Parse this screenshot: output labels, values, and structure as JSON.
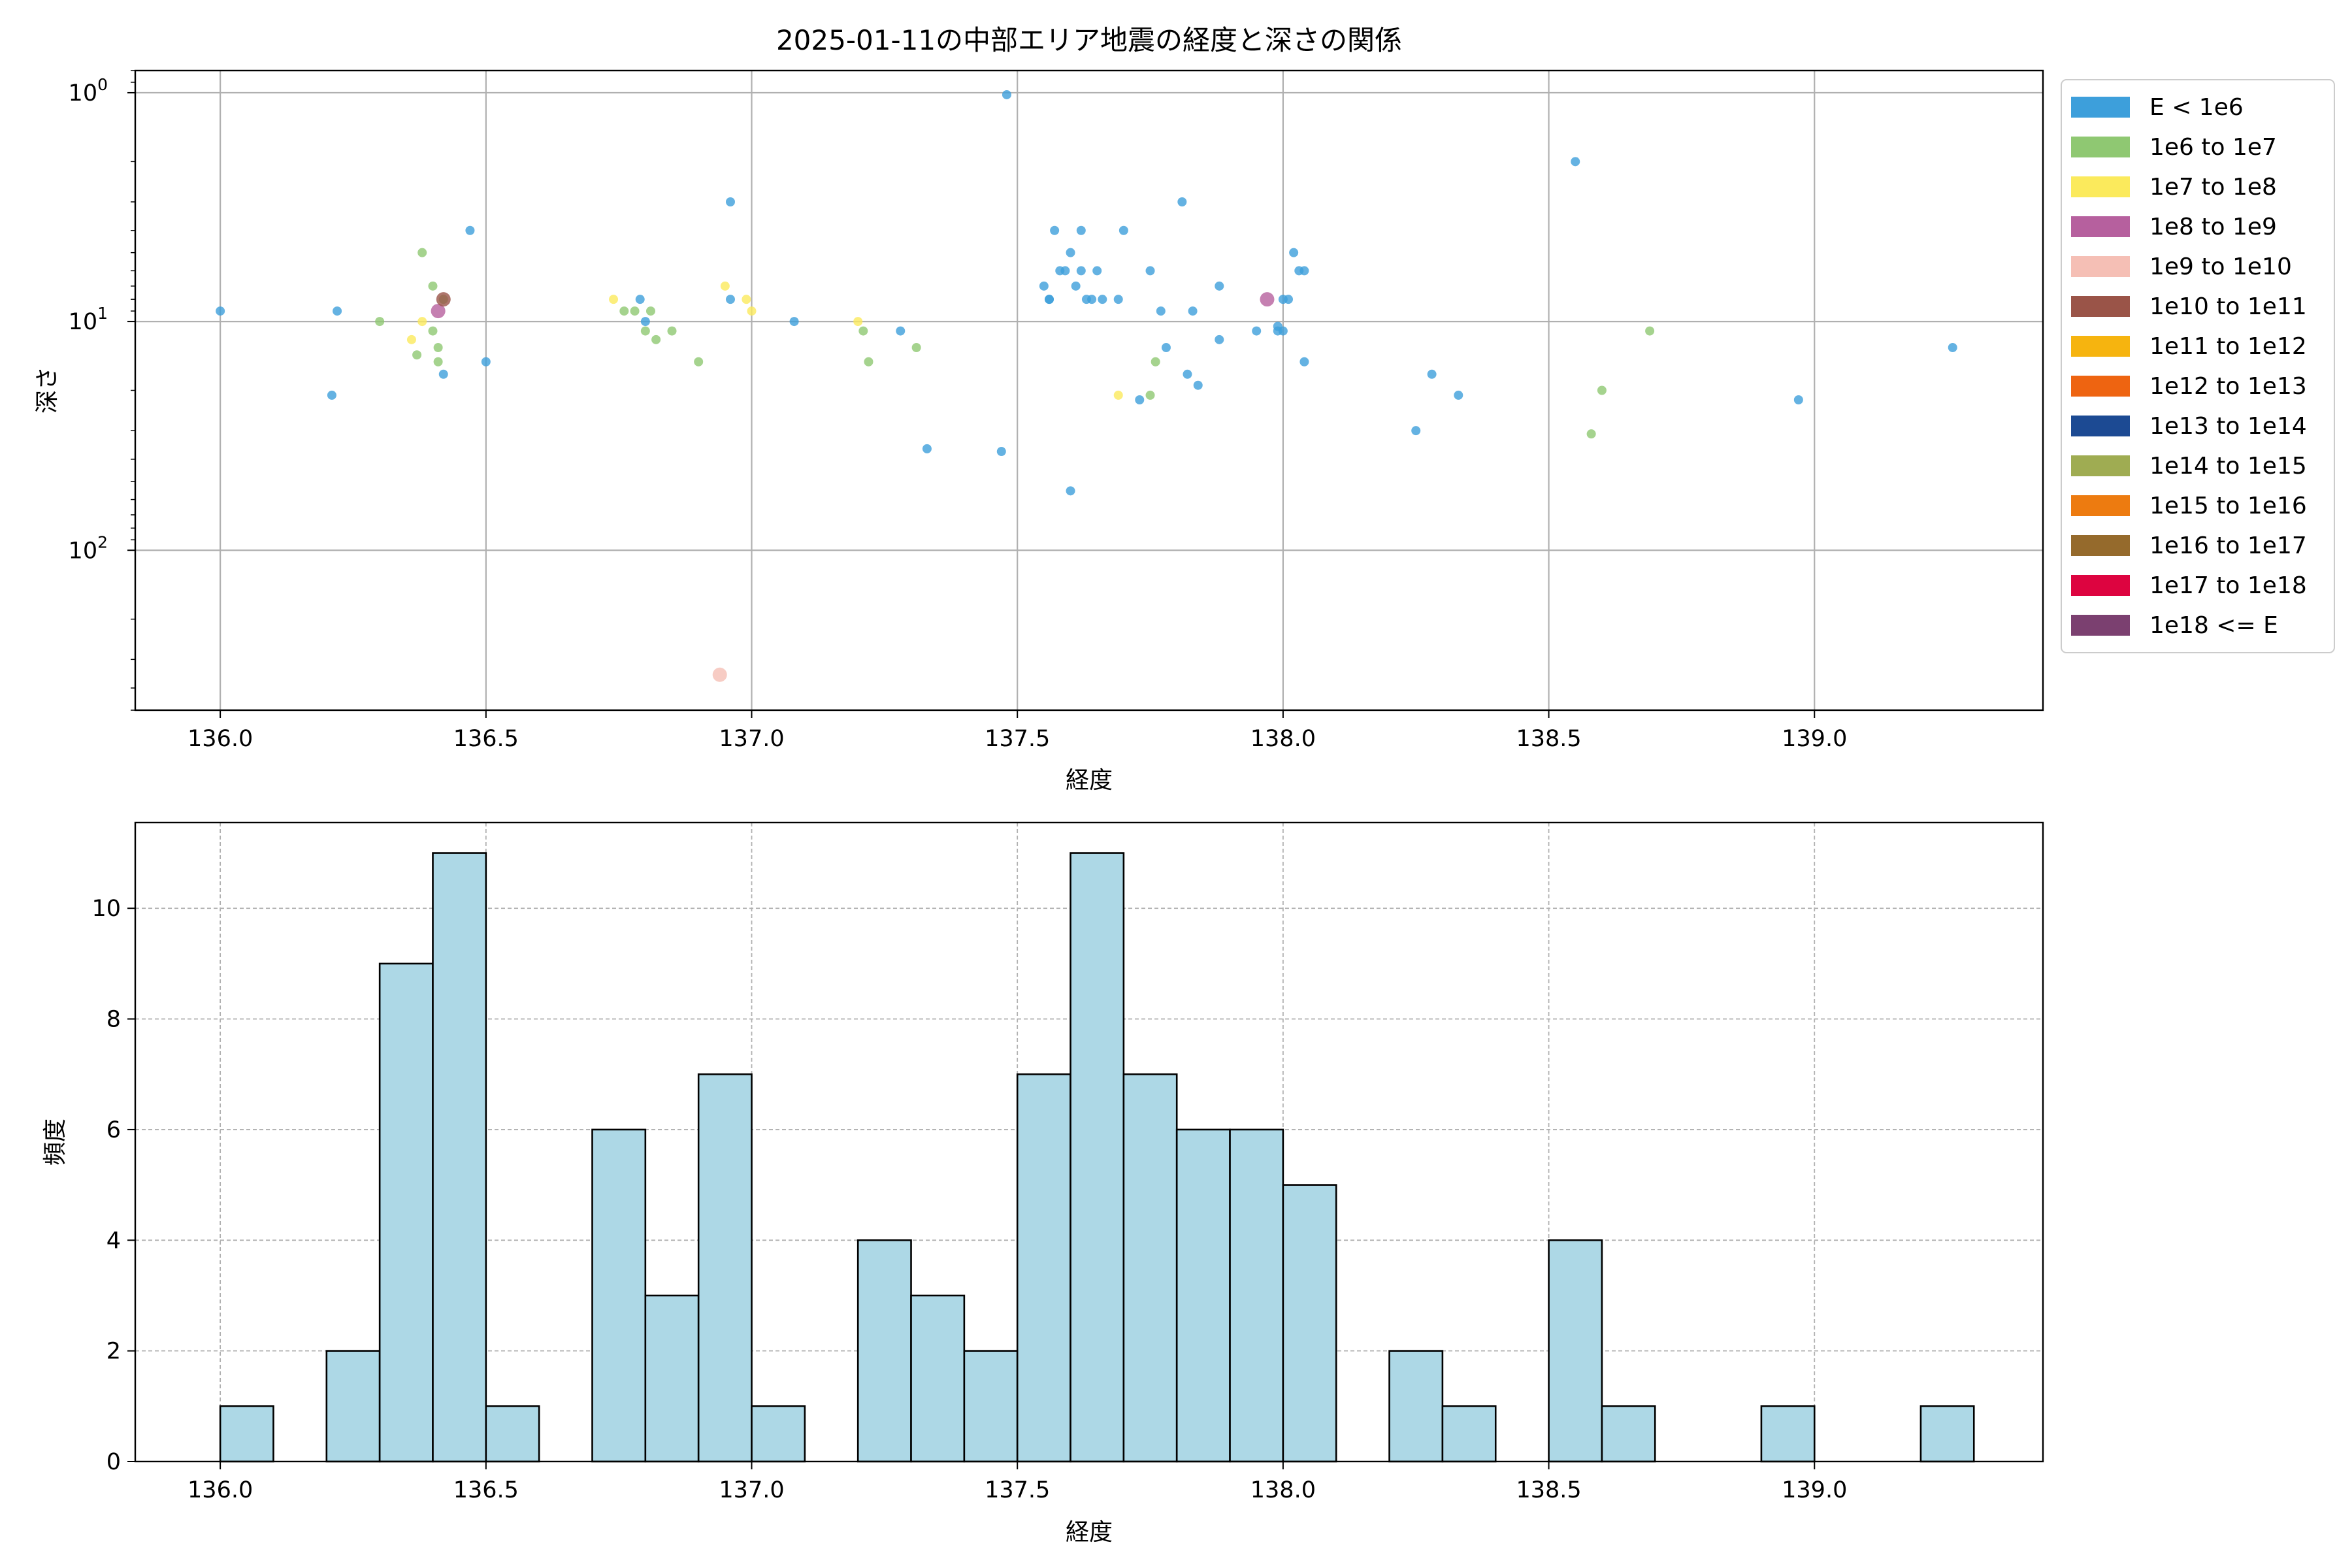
{
  "chart_data": [
    {
      "type": "scatter",
      "title": "2025-01-11の中部エリア地震の経度と深さの関係",
      "xlabel": "経度",
      "ylabel": "深さ",
      "xlim": [
        135.84,
        139.43
      ],
      "ylim": [
        500,
        0.8
      ],
      "yscale": "log",
      "y_inverted": true,
      "x_ticks": [
        "136.0",
        "136.5",
        "137.0",
        "137.5",
        "138.0",
        "138.5",
        "139.0"
      ],
      "x_tick_values": [
        136.0,
        136.5,
        137.0,
        137.5,
        138.0,
        138.5,
        139.0
      ],
      "y_ticks": [
        {
          "value": 1,
          "base": "10",
          "exp": "0"
        },
        {
          "value": 10,
          "base": "10",
          "exp": "1"
        },
        {
          "value": 100,
          "base": "10",
          "exp": "2"
        }
      ],
      "grid": true,
      "legend_position": "outside-right",
      "legend": [
        {
          "label": "E < 1e6",
          "color": "#3d9fdb"
        },
        {
          "label": "1e6 to 1e7",
          "color": "#8fc872"
        },
        {
          "label": "1e7 to 1e8",
          "color": "#fbea5c"
        },
        {
          "label": "1e8 to 1e9",
          "color": "#b6609e"
        },
        {
          "label": "1e9 to 1e10",
          "color": "#f5bfb5"
        },
        {
          "label": "1e10 to 1e11",
          "color": "#9a5448"
        },
        {
          "label": "1e11 to 1e12",
          "color": "#f6b40f"
        },
        {
          "label": "1e12 to 1e13",
          "color": "#ee6411"
        },
        {
          "label": "1e13 to 1e14",
          "color": "#1c4a93"
        },
        {
          "label": "1e14 to 1e15",
          "color": "#9fac52"
        },
        {
          "label": "1e15 to 1e16",
          "color": "#ed7b10"
        },
        {
          "label": "1e16 to 1e17",
          "color": "#956a2c"
        },
        {
          "label": "1e17 to 1e18",
          "color": "#dd0440"
        },
        {
          "label": "1e18 <= E",
          "color": "#7b4070"
        }
      ],
      "series": [
        {
          "name": "E < 1e6",
          "color": "#3d9fdb",
          "points": [
            [
              136.0,
              9
            ],
            [
              136.21,
              21
            ],
            [
              136.22,
              9
            ],
            [
              136.42,
              17
            ],
            [
              136.47,
              4
            ],
            [
              136.5,
              15
            ],
            [
              136.79,
              8
            ],
            [
              136.8,
              10
            ],
            [
              136.96,
              3
            ],
            [
              136.96,
              8
            ],
            [
              137.08,
              10
            ],
            [
              137.28,
              11
            ],
            [
              137.33,
              36
            ],
            [
              137.47,
              37
            ],
            [
              137.48,
              1.02
            ],
            [
              137.55,
              7
            ],
            [
              137.56,
              8
            ],
            [
              137.56,
              8
            ],
            [
              137.57,
              4
            ],
            [
              137.58,
              6
            ],
            [
              137.59,
              6
            ],
            [
              137.6,
              55
            ],
            [
              137.6,
              5
            ],
            [
              137.61,
              7
            ],
            [
              137.62,
              4
            ],
            [
              137.62,
              6
            ],
            [
              137.63,
              8
            ],
            [
              137.64,
              8
            ],
            [
              137.65,
              6
            ],
            [
              137.66,
              8
            ],
            [
              137.69,
              8
            ],
            [
              137.7,
              4
            ],
            [
              137.73,
              22
            ],
            [
              137.75,
              6
            ],
            [
              137.77,
              9
            ],
            [
              137.78,
              13
            ],
            [
              137.81,
              3
            ],
            [
              137.82,
              17
            ],
            [
              137.83,
              9
            ],
            [
              137.84,
              19
            ],
            [
              137.88,
              7
            ],
            [
              137.88,
              12
            ],
            [
              137.95,
              11
            ],
            [
              137.99,
              10.5
            ],
            [
              137.99,
              11
            ],
            [
              138.0,
              8
            ],
            [
              138.0,
              11
            ],
            [
              138.01,
              8
            ],
            [
              138.02,
              5
            ],
            [
              138.03,
              6
            ],
            [
              138.04,
              6
            ],
            [
              138.04,
              15
            ],
            [
              138.25,
              30
            ],
            [
              138.28,
              17
            ],
            [
              138.33,
              21
            ],
            [
              138.55,
              2
            ],
            [
              138.97,
              22
            ],
            [
              139.26,
              13
            ]
          ]
        },
        {
          "name": "1e6 to 1e7",
          "color": "#8fc872",
          "points": [
            [
              136.3,
              10
            ],
            [
              136.37,
              14
            ],
            [
              136.38,
              5
            ],
            [
              136.4,
              7
            ],
            [
              136.4,
              11
            ],
            [
              136.41,
              15
            ],
            [
              136.41,
              13
            ],
            [
              136.42,
              8
            ],
            [
              136.76,
              9
            ],
            [
              136.78,
              9
            ],
            [
              136.8,
              11
            ],
            [
              136.81,
              9
            ],
            [
              136.82,
              12
            ],
            [
              136.85,
              11
            ],
            [
              136.9,
              15
            ],
            [
              137.21,
              11
            ],
            [
              137.22,
              15
            ],
            [
              137.31,
              13
            ],
            [
              137.75,
              21
            ],
            [
              137.76,
              15
            ],
            [
              138.58,
              31
            ],
            [
              138.6,
              20
            ],
            [
              138.69,
              11
            ]
          ]
        },
        {
          "name": "1e7 to 1e8",
          "color": "#fbea5c",
          "points": [
            [
              136.36,
              12
            ],
            [
              136.38,
              10
            ],
            [
              136.74,
              8
            ],
            [
              136.95,
              7
            ],
            [
              136.99,
              8
            ],
            [
              137.0,
              9
            ],
            [
              137.2,
              10
            ],
            [
              137.69,
              21
            ]
          ]
        },
        {
          "name": "1e8 to 1e9",
          "color": "#b6609e",
          "points": [
            [
              136.41,
              9
            ],
            [
              137.97,
              8
            ]
          ]
        },
        {
          "name": "1e9 to 1e10",
          "color": "#f5bfb5",
          "points": [
            [
              136.94,
              350
            ]
          ]
        },
        {
          "name": "1e10 to 1e11",
          "color": "#9a5448",
          "points": [
            [
              136.42,
              8
            ]
          ]
        }
      ]
    },
    {
      "type": "bar",
      "subtype": "histogram",
      "xlabel": "経度",
      "ylabel": "頻度",
      "xlim": [
        135.84,
        139.43
      ],
      "ylim": [
        0,
        11.55
      ],
      "x_ticks": [
        "136.0",
        "136.5",
        "137.0",
        "137.5",
        "138.0",
        "138.5",
        "139.0"
      ],
      "x_tick_values": [
        136.0,
        136.5,
        137.0,
        137.5,
        138.0,
        138.5,
        139.0
      ],
      "y_ticks": [
        "0",
        "2",
        "4",
        "6",
        "8",
        "10"
      ],
      "y_tick_values": [
        0,
        2,
        4,
        6,
        8,
        10
      ],
      "grid": true,
      "bar_color": "#add8e6",
      "edge_color": "#000000",
      "bin_start": 136.0,
      "bin_width": 0.1,
      "values": [
        1,
        0,
        2,
        9,
        11,
        1,
        0,
        6,
        3,
        7,
        1,
        0,
        4,
        3,
        2,
        7,
        11,
        7,
        6,
        6,
        5,
        0,
        2,
        1,
        0,
        4,
        1,
        0,
        0,
        1,
        0,
        0,
        1
      ]
    }
  ]
}
